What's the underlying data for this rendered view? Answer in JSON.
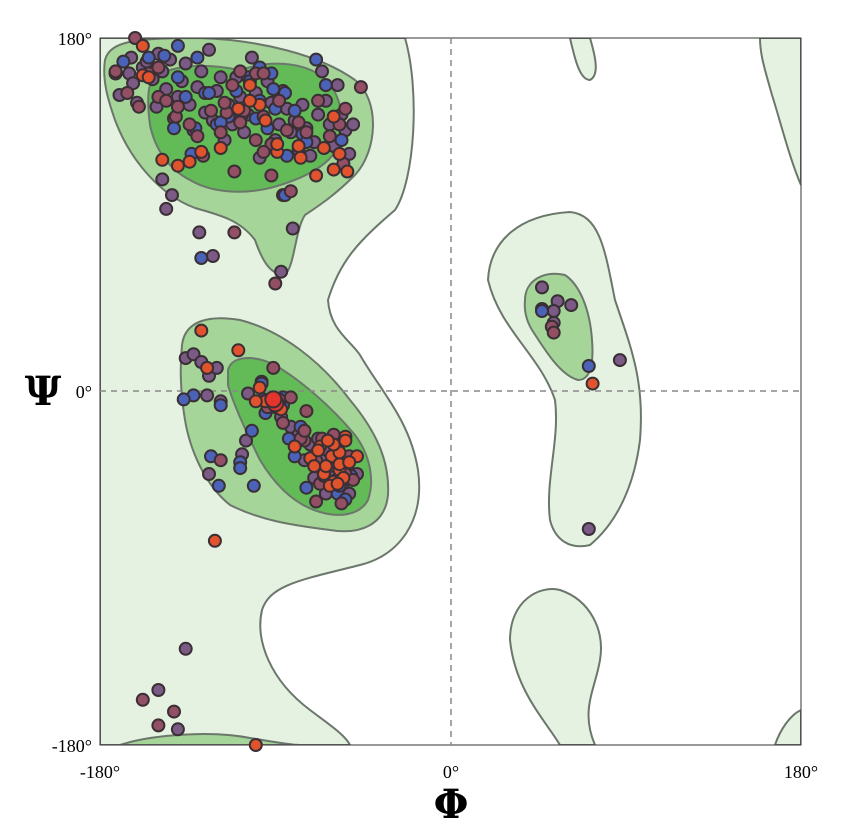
{
  "chart_data": {
    "type": "scatter",
    "title": "",
    "xlabel": "Φ",
    "ylabel": "Ψ",
    "xlim": [
      -180,
      180
    ],
    "ylim": [
      -180,
      180
    ],
    "x_tick_labels": [
      "-180°",
      "0°",
      "180°"
    ],
    "y_tick_labels": [
      "180°",
      "0°",
      "-180°"
    ],
    "grid": "dashed zero lines",
    "colors": {
      "general_region": "#e6f2e1",
      "allowed_region": "#a6d59a",
      "favored_region": "#63bb58",
      "region_outline": "#6b776b",
      "background": "#ffffff"
    },
    "series": [
      {
        "name": "purple",
        "color": "#7b5a86",
        "points": [
          [
            -170,
            151
          ],
          [
            -165,
            162
          ],
          [
            -164,
            170
          ],
          [
            -163,
            157
          ],
          [
            -161,
            147
          ],
          [
            -158,
            165
          ],
          [
            -156,
            168
          ],
          [
            -153,
            159
          ],
          [
            -151,
            145
          ],
          [
            -150,
            172
          ],
          [
            -148,
            163
          ],
          [
            -146,
            154
          ],
          [
            -144,
            169
          ],
          [
            -142,
            139
          ],
          [
            -140,
            150
          ],
          [
            -138,
            158
          ],
          [
            -136,
            167
          ],
          [
            -134,
            146
          ],
          [
            -132,
            133
          ],
          [
            -130,
            155
          ],
          [
            -128,
            163
          ],
          [
            -126,
            142
          ],
          [
            -124,
            174
          ],
          [
            -122,
            138
          ],
          [
            -120,
            153
          ],
          [
            -118,
            160
          ],
          [
            -116,
            128
          ],
          [
            -114,
            146
          ],
          [
            -112,
            136
          ],
          [
            -110,
            160
          ],
          [
            -108,
            150
          ],
          [
            -106,
            132
          ],
          [
            -104,
            141
          ],
          [
            -102,
            170
          ],
          [
            -100,
            152
          ],
          [
            -98,
            119
          ],
          [
            -96,
            139
          ],
          [
            -94,
            158
          ],
          [
            -92,
            147
          ],
          [
            -90,
            128
          ],
          [
            -88,
            136
          ],
          [
            -86,
            153
          ],
          [
            -84,
            144
          ],
          [
            -82,
            132
          ],
          [
            -80,
            138
          ],
          [
            -78,
            123
          ],
          [
            -76,
            146
          ],
          [
            -74,
            134
          ],
          [
            -72,
            120
          ],
          [
            -70,
            127
          ],
          [
            -68,
            141
          ],
          [
            -66,
            163
          ],
          [
            -64,
            148
          ],
          [
            -62,
            136
          ],
          [
            -60,
            125
          ],
          [
            -58,
            156
          ],
          [
            -56,
            141
          ],
          [
            -54,
            133
          ],
          [
            -52,
            121
          ],
          [
            -50,
            136
          ],
          [
            -148,
            108
          ],
          [
            -143,
            100
          ],
          [
            -146,
            93
          ],
          [
            -129,
            81
          ],
          [
            -122,
            69
          ],
          [
            -87,
            61
          ],
          [
            -81,
            83
          ],
          [
            -86,
            100
          ],
          [
            -136,
            17
          ],
          [
            -132,
            19
          ],
          [
            -128,
            15
          ],
          [
            -124,
            8
          ],
          [
            -120,
            12
          ],
          [
            -125,
            -2
          ],
          [
            -118,
            -5
          ],
          [
            -104,
            -1
          ],
          [
            -97,
            5
          ],
          [
            -90,
            -8
          ],
          [
            -93,
            -5
          ],
          [
            -87,
            -13
          ],
          [
            -82,
            -18
          ],
          [
            -78,
            -22
          ],
          [
            -72,
            -27
          ],
          [
            -68,
            -24
          ],
          [
            -66,
            -35
          ],
          [
            -62,
            -40
          ],
          [
            -58,
            -45
          ],
          [
            -55,
            -50
          ],
          [
            -60,
            -48
          ],
          [
            -53,
            -38
          ],
          [
            -52,
            -52
          ],
          [
            -57,
            -35
          ],
          [
            -63,
            -30
          ],
          [
            -70,
            -44
          ],
          [
            -48,
            -42
          ],
          [
            -64,
            -52
          ],
          [
            -75,
            -35
          ],
          [
            -105,
            -25
          ],
          [
            -124,
            -42
          ],
          [
            -136,
            -131
          ],
          [
            -150,
            -152
          ],
          [
            -140,
            -172
          ],
          [
            -107,
            -32
          ],
          [
            47,
            53
          ],
          [
            55,
            46
          ],
          [
            62,
            44
          ],
          [
            47,
            42
          ],
          [
            53,
            35
          ],
          [
            53,
            41
          ],
          [
            87,
            16
          ],
          [
            71,
            -70
          ]
        ]
      },
      {
        "name": "blue",
        "color": "#4a62b8",
        "points": [
          [
            -172,
            162
          ],
          [
            -168,
            168
          ],
          [
            -155,
            170
          ],
          [
            -147,
            171
          ],
          [
            -140,
            160
          ],
          [
            -136,
            150
          ],
          [
            -130,
            170
          ],
          [
            -126,
            152
          ],
          [
            -120,
            136
          ],
          [
            -114,
            140
          ],
          [
            -110,
            153
          ],
          [
            -104,
            160
          ],
          [
            -98,
            148
          ],
          [
            -94,
            134
          ],
          [
            -92,
            162
          ],
          [
            -90,
            144
          ],
          [
            -85,
            152
          ],
          [
            -84,
            120
          ],
          [
            -80,
            143
          ],
          [
            -76,
            131
          ],
          [
            -69,
            169
          ],
          [
            -64,
            156
          ],
          [
            -56,
            128
          ],
          [
            -85,
            100
          ],
          [
            -132,
            -2
          ],
          [
            -137,
            -4
          ],
          [
            -128,
            68
          ],
          [
            -118,
            -7
          ],
          [
            -108,
            -36
          ],
          [
            -94,
            -6
          ],
          [
            -86,
            -7
          ],
          [
            -83,
            -24
          ],
          [
            -77,
            -18
          ],
          [
            -74,
            -49
          ],
          [
            -65,
            -46
          ],
          [
            -68,
            -38
          ],
          [
            -61,
            -47
          ],
          [
            -58,
            -52
          ],
          [
            -57,
            -48
          ],
          [
            -51,
            -43
          ],
          [
            -54,
            -55
          ],
          [
            -123,
            -33
          ],
          [
            -101,
            -48
          ],
          [
            -119,
            -48
          ],
          [
            -97,
            4
          ],
          [
            -86,
            -3
          ],
          [
            -96,
            -4
          ],
          [
            -95,
            -11
          ],
          [
            -80,
            -33
          ],
          [
            -102,
            -20
          ],
          [
            -118,
            137
          ],
          [
            -124,
            152
          ],
          [
            -131,
            134
          ],
          [
            -142,
            134
          ],
          [
            -100,
            139
          ],
          [
            -91,
            154
          ],
          [
            -74,
            127
          ],
          [
            -103,
            158
          ],
          [
            -133,
            121
          ],
          [
            -107,
            141
          ],
          [
            -108,
            -39
          ],
          [
            71,
            13
          ],
          [
            47,
            41
          ],
          [
            -140,
            176
          ],
          [
            -98,
            165
          ]
        ]
      },
      {
        "name": "maroon",
        "color": "#934f63",
        "points": [
          [
            -162,
            180
          ],
          [
            -172,
            162
          ],
          [
            -166,
            152
          ],
          [
            -160,
            145
          ],
          [
            -155,
            162
          ],
          [
            -150,
            150
          ],
          [
            -146,
            148
          ],
          [
            -141,
            140
          ],
          [
            -134,
            136
          ],
          [
            -127,
            120
          ],
          [
            -123,
            143
          ],
          [
            -118,
            132
          ],
          [
            -112,
            156
          ],
          [
            -106,
            143
          ],
          [
            -100,
            128
          ],
          [
            -96,
            140
          ],
          [
            -92,
            126
          ],
          [
            -88,
            148
          ],
          [
            -84,
            133
          ],
          [
            -78,
            137
          ],
          [
            -74,
            132
          ],
          [
            -68,
            148
          ],
          [
            -62,
            130
          ],
          [
            -57,
            136
          ],
          [
            -54,
            144
          ],
          [
            -46,
            155
          ],
          [
            -55,
            116
          ],
          [
            -115,
            142
          ],
          [
            -108,
            163
          ],
          [
            -100,
            162
          ],
          [
            -96,
            162
          ],
          [
            -130,
            130
          ],
          [
            -140,
            145
          ],
          [
            -150,
            165
          ],
          [
            -111,
            112
          ],
          [
            -92,
            110
          ],
          [
            -82,
            102
          ],
          [
            -111,
            81
          ],
          [
            -118,
            -35
          ],
          [
            -116,
            147
          ],
          [
            -108,
            137
          ],
          [
            -96,
            122
          ],
          [
            -75,
            -25
          ],
          [
            -69,
            -35
          ],
          [
            -62,
            -38
          ],
          [
            -58,
            -30
          ],
          [
            -54,
            -42
          ],
          [
            -56,
            -57
          ],
          [
            -69,
            -56
          ],
          [
            -66,
            -24
          ],
          [
            -60,
            -22
          ],
          [
            -52,
            -33
          ],
          [
            -50,
            -45
          ],
          [
            -67,
            -47
          ],
          [
            -88,
            -4
          ],
          [
            -82,
            -3
          ],
          [
            -74,
            -10
          ],
          [
            -91,
            12
          ],
          [
            -94,
            -8
          ],
          [
            -86,
            -16
          ],
          [
            -172,
            163
          ],
          [
            -90,
            55
          ],
          [
            -77,
            -24
          ],
          [
            -65,
            -43
          ],
          [
            52,
            33
          ],
          [
            53,
            30
          ],
          [
            -75,
            -20
          ],
          [
            -150,
            -170
          ],
          [
            -158,
            -157
          ],
          [
            -142,
            -163
          ]
        ]
      },
      {
        "name": "orange",
        "color": "#e0532d",
        "points": [
          [
            -158,
            176
          ],
          [
            -158,
            161
          ],
          [
            -128,
            122
          ],
          [
            -109,
            144
          ],
          [
            -103,
            156
          ],
          [
            -95,
            138
          ],
          [
            -89,
            122
          ],
          [
            -78,
            125
          ],
          [
            -77,
            119
          ],
          [
            -65,
            124
          ],
          [
            -69,
            110
          ],
          [
            -60,
            140
          ],
          [
            -60,
            113
          ],
          [
            -57,
            121
          ],
          [
            -53,
            112
          ],
          [
            -148,
            118
          ],
          [
            -140,
            115
          ],
          [
            -134,
            117
          ],
          [
            -118,
            124
          ],
          [
            -98,
            146
          ],
          [
            -128,
            31
          ],
          [
            -109,
            21
          ],
          [
            -125,
            12
          ],
          [
            -80,
            -28
          ],
          [
            -67,
            -28
          ],
          [
            -54,
            -23
          ],
          [
            -61,
            -33
          ],
          [
            -65,
            -42
          ],
          [
            -57,
            -40
          ],
          [
            -60,
            -46
          ],
          [
            -57,
            -37
          ],
          [
            -55,
            -44
          ],
          [
            -64,
            -38
          ],
          [
            -72,
            -34
          ],
          [
            -68,
            -30
          ],
          [
            -57,
            -31
          ],
          [
            -121,
            -76
          ],
          [
            -100,
            -180
          ],
          [
            -87,
            -9
          ],
          [
            -95,
            -5
          ],
          [
            -98,
            2
          ],
          [
            -100,
            -5
          ],
          [
            -60,
            -27
          ],
          [
            -54,
            -25
          ],
          [
            -48,
            -33
          ],
          [
            -52,
            -36
          ],
          [
            -63,
            -25
          ],
          [
            -62,
            -48
          ],
          [
            -58,
            -47
          ],
          [
            -70,
            -38
          ],
          [
            73,
            4
          ],
          [
            -155,
            160
          ],
          [
            -103,
            148
          ],
          [
            -89,
            126
          ]
        ]
      },
      {
        "name": "red",
        "color": "#e5342c",
        "points": [
          [
            -90,
            -6
          ],
          [
            -91,
            -4
          ]
        ]
      }
    ]
  }
}
